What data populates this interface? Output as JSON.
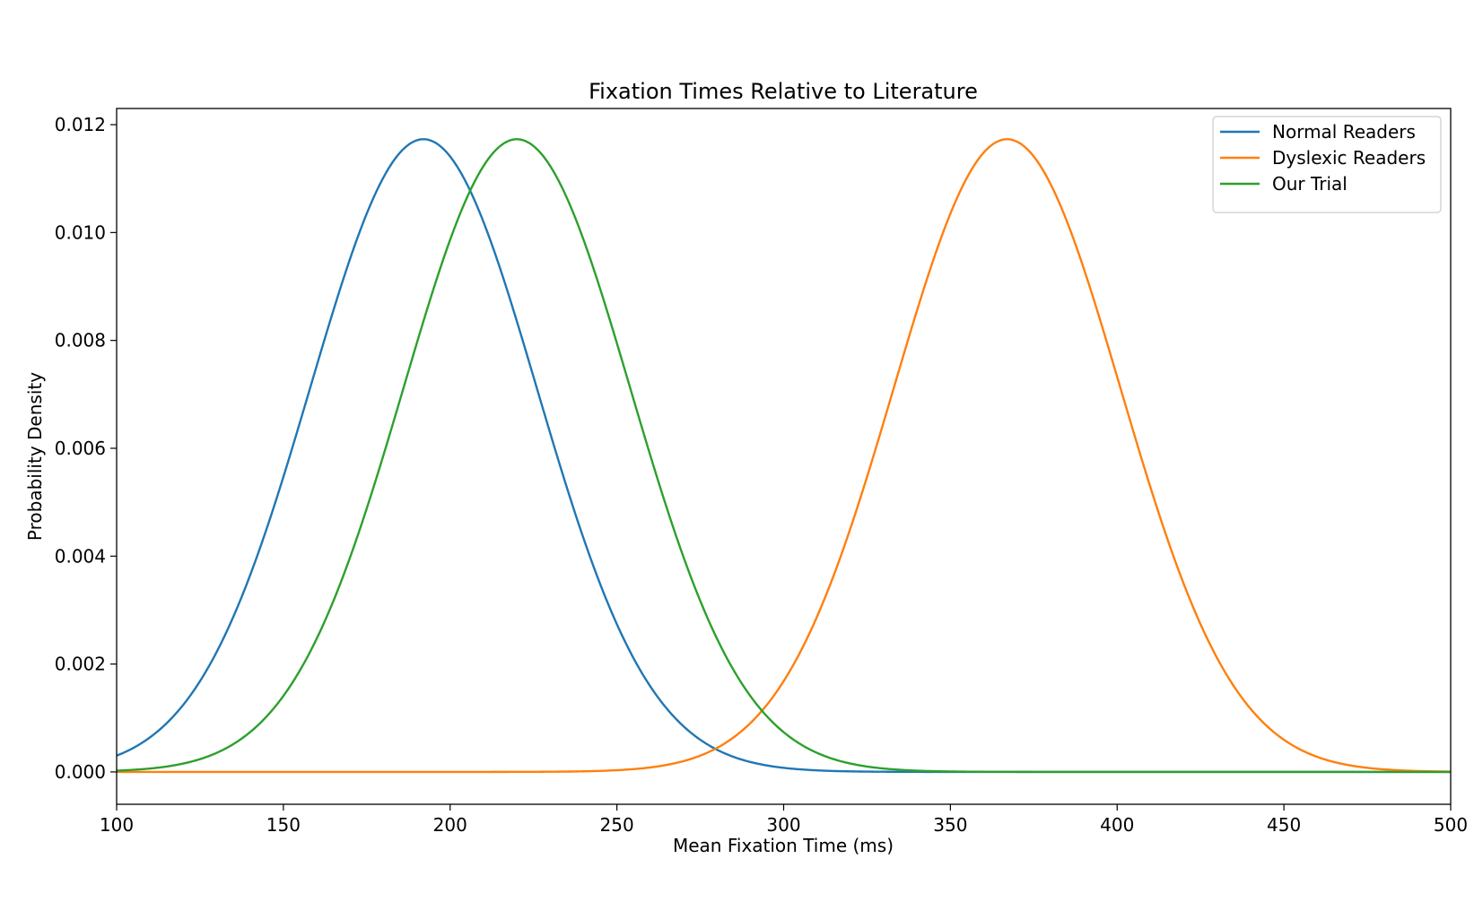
{
  "chart_data": {
    "type": "line",
    "title": "Fixation Times Relative to Literature",
    "xlabel": "Mean Fixation Time (ms)",
    "ylabel": "Probability Density",
    "xlim": [
      100,
      500
    ],
    "ylim": [
      -0.0006,
      0.0123
    ],
    "x_ticks": [
      100,
      150,
      200,
      250,
      300,
      350,
      400,
      450,
      500
    ],
    "y_ticks": [
      0.0,
      0.002,
      0.004,
      0.006,
      0.008,
      0.01,
      0.012
    ],
    "x_tick_labels": [
      "100",
      "150",
      "200",
      "250",
      "300",
      "350",
      "400",
      "450",
      "500"
    ],
    "y_tick_labels": [
      "0.000",
      "0.002",
      "0.004",
      "0.006",
      "0.008",
      "0.010",
      "0.012"
    ],
    "grid": false,
    "legend_position": "top-right",
    "series": [
      {
        "name": "Normal Readers",
        "color": "#1f77b4",
        "mean": 192,
        "sd": 34,
        "peak": 0.01173
      },
      {
        "name": "Dyslexic Readers",
        "color": "#ff7f0e",
        "mean": 367,
        "sd": 34,
        "peak": 0.01173
      },
      {
        "name": "Our Trial",
        "color": "#2ca02c",
        "mean": 220,
        "sd": 34,
        "peak": 0.01173
      }
    ]
  }
}
